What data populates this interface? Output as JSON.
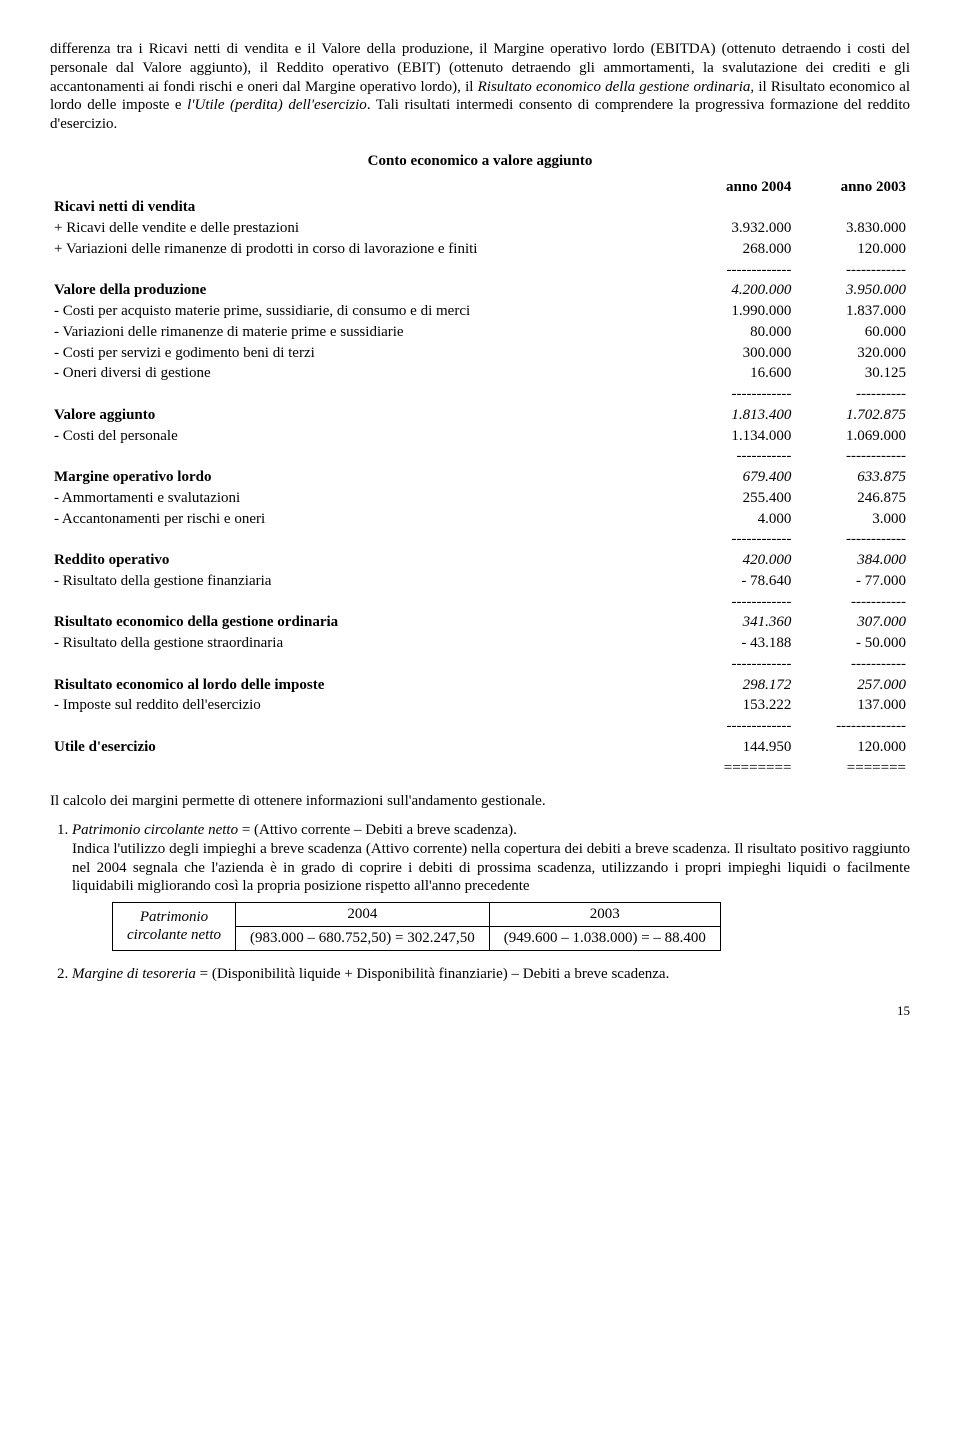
{
  "intro": {
    "p1_a": "differenza tra i Ricavi netti di vendita e il Valore della produzione, il Margine operativo lordo (EBITDA) (ottenuto detraendo i costi del personale dal Valore aggiunto), il Reddito operativo (EBIT) (ottenuto detraendo gli ammortamenti, la svalutazione dei crediti e gli accantonamenti ai fondi rischi e oneri dal Margine operativo lordo), il ",
    "p1_b": "Risultato economico della gestione ordinaria",
    "p1_c": ", il Risultato economico al lordo delle imposte e  ",
    "p1_d": "l'Utile (perdita) dell'esercizio",
    "p1_e": ". Tali risultati intermedi consento di comprendere la progressiva formazione del reddito d'esercizio."
  },
  "conto": {
    "title": "Conto economico a valore aggiunto",
    "col2004": "anno 2004",
    "col2003": "anno 2003",
    "h_ricavi": "Ricavi netti di vendita",
    "r_vendite_l": "+ Ricavi delle vendite e delle prestazioni",
    "r_vendite_04": "3.932.000",
    "r_vendite_03": "3.830.000",
    "r_variaz_l": "+ Variazioni delle rimanenze di prodotti in corso di lavorazione e finiti",
    "r_variaz_04": "268.000",
    "r_variaz_03": "120.000",
    "dash_a04": "-------------",
    "dash_a03": "------------",
    "h_valprod": "Valore della produzione",
    "valprod_04": "4.200.000",
    "valprod_03": "3.950.000",
    "c_mat_l": "- Costi per acquisto materie prime, sussidiarie, di consumo e di merci",
    "c_mat_04": "1.990.000",
    "c_mat_03": "1.837.000",
    "c_var_l": "- Variazioni delle rimanenze di materie prime e sussidiarie",
    "c_var_04": "80.000",
    "c_var_03": "60.000",
    "c_serv_l": "- Costi per servizi e godimento beni di terzi",
    "c_serv_04": "300.000",
    "c_serv_03": "320.000",
    "c_oneri_l": "- Oneri diversi di gestione",
    "c_oneri_04": "16.600",
    "c_oneri_03": "30.125",
    "dash_b04": "------------",
    "dash_b03": "----------",
    "h_valagg": "Valore aggiunto",
    "valagg_04": "1.813.400",
    "valagg_03": "1.702.875",
    "c_pers_l": "- Costi del personale",
    "c_pers_04": "1.134.000",
    "c_pers_03": "1.069.000",
    "dash_c04": "-----------",
    "dash_c03": "------------",
    "h_mol": "Margine operativo lordo",
    "mol_04": "679.400",
    "mol_03": "633.875",
    "c_amm_l": "- Ammortamenti e svalutazioni",
    "c_amm_04": "255.400",
    "c_amm_03": "246.875",
    "c_acc_l": "- Accantonamenti per rischi e oneri",
    "c_acc_04": "4.000",
    "c_acc_03": "3.000",
    "dash_d04": "------------",
    "dash_d03": "------------",
    "h_redop": "Reddito operativo",
    "redop_04": "420.000",
    "redop_03": "384.000",
    "r_fin_l": "- Risultato della gestione finanziaria",
    "r_fin_04": "- 78.640",
    "r_fin_03": "- 77.000",
    "dash_e04": "------------",
    "dash_e03": "-----------",
    "h_ord": "Risultato economico della gestione ordinaria",
    "ord_04": "341.360",
    "ord_03": "307.000",
    "r_str_l": "- Risultato della gestione straordinaria",
    "r_str_04": "- 43.188",
    "r_str_03": "- 50.000",
    "dash_f04": "------------",
    "dash_f03": "-----------",
    "h_lordo": "Risultato economico al lordo delle imposte",
    "lordo_04": "298.172",
    "lordo_03": "257.000",
    "r_imp_l": "- Imposte sul reddito dell'esercizio",
    "r_imp_04": "153.222",
    "r_imp_03": "137.000",
    "dash_g04": "-------------",
    "dash_g03": "--------------",
    "h_utile": "Utile d'esercizio",
    "utile_04": "144.950",
    "utile_03": "120.000",
    "eq04": "========",
    "eq03": "======="
  },
  "after": {
    "p1": "Il calcolo dei margini permette di ottenere informazioni sull'andamento gestionale.",
    "li1_a": "Patrimonio circolante netto",
    "li1_b": " = (Attivo corrente – Debiti a breve scadenza).",
    "li1_c": "Indica l'utilizzo degli impieghi a breve scadenza (Attivo corrente) nella copertura dei debiti a breve scadenza. Il risultato positivo raggiunto nel 2004 segnala che l'azienda è in grado di coprire i debiti di prossima scadenza, utilizzando i propri impieghi liquidi o facilmente liquidabili migliorando così la propria posizione rispetto all'anno precedente",
    "li2_a": "Margine di tesoreria",
    "li2_b": " = (Disponibilità liquide + Disponibilità finanziarie) – Debiti a breve scadenza."
  },
  "patrimonio": {
    "r1c1": "Patrimonio",
    "r1c2": "2004",
    "r1c3": "2003",
    "r2c1": "circolante netto",
    "r2c2": "(983.000 – 680.752,50) = 302.247,50",
    "r2c3": "(949.600 – 1.038.000) = – 88.400"
  },
  "page": "15"
}
